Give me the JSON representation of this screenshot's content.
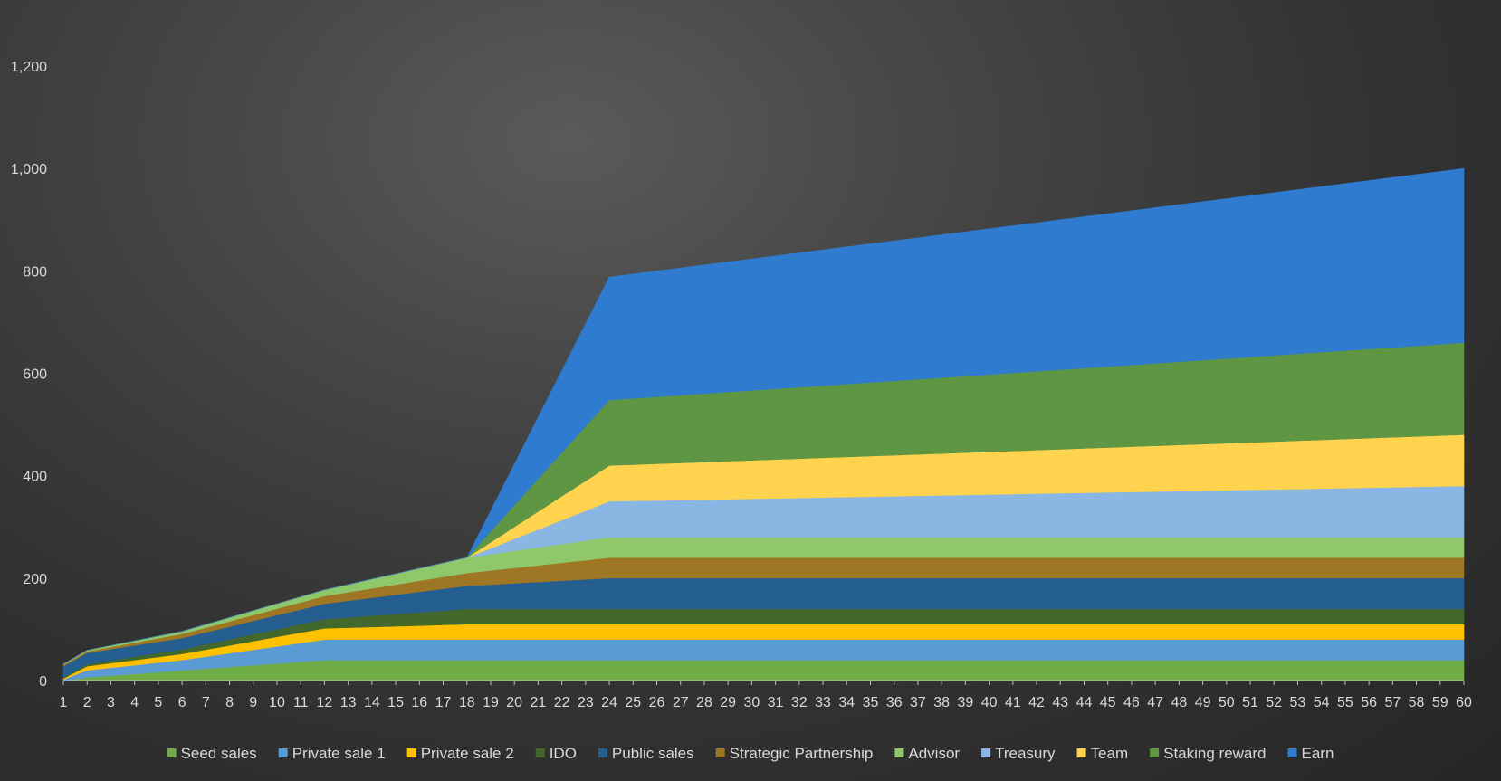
{
  "chart_data": {
    "type": "area",
    "stacked": true,
    "title": "",
    "xlabel": "",
    "ylabel": "",
    "x": [
      1,
      2,
      3,
      4,
      5,
      6,
      7,
      8,
      9,
      10,
      11,
      12,
      13,
      14,
      15,
      16,
      17,
      18,
      19,
      20,
      21,
      22,
      23,
      24,
      25,
      26,
      27,
      28,
      29,
      30,
      31,
      32,
      33,
      34,
      35,
      36,
      37,
      38,
      39,
      40,
      41,
      42,
      43,
      44,
      45,
      46,
      47,
      48,
      49,
      50,
      51,
      52,
      53,
      54,
      55,
      56,
      57,
      58,
      59,
      60
    ],
    "ylim": [
      0,
      1200
    ],
    "yticks": [
      0,
      200,
      400,
      600,
      800,
      1000,
      1200
    ],
    "ytick_labels": [
      "0",
      "200",
      "400",
      "600",
      "800",
      "1,000",
      "1,200"
    ],
    "legend_position": "bottom",
    "grid": false,
    "series": [
      {
        "name": "Seed sales",
        "color": "#70ad47",
        "anchors": [
          [
            1,
            0
          ],
          [
            2,
            6
          ],
          [
            6,
            20
          ],
          [
            12,
            40
          ],
          [
            60,
            40
          ]
        ]
      },
      {
        "name": "Private sale 1",
        "color": "#5b9bd5",
        "anchors": [
          [
            1,
            2
          ],
          [
            2,
            14
          ],
          [
            6,
            20
          ],
          [
            12,
            40
          ],
          [
            60,
            40
          ]
        ]
      },
      {
        "name": "Private sale 2",
        "color": "#ffc000",
        "anchors": [
          [
            1,
            2
          ],
          [
            2,
            8
          ],
          [
            6,
            12
          ],
          [
            12,
            22
          ],
          [
            18,
            30
          ],
          [
            60,
            30
          ]
        ]
      },
      {
        "name": "IDO",
        "color": "#43682b",
        "anchors": [
          [
            1,
            2
          ],
          [
            2,
            4
          ],
          [
            6,
            9
          ],
          [
            12,
            18
          ],
          [
            18,
            30
          ],
          [
            60,
            30
          ]
        ]
      },
      {
        "name": "Public sales",
        "color": "#255e91",
        "anchors": [
          [
            1,
            22
          ],
          [
            2,
            22
          ],
          [
            6,
            22
          ],
          [
            12,
            30
          ],
          [
            18,
            45
          ],
          [
            24,
            60
          ],
          [
            60,
            60
          ]
        ]
      },
      {
        "name": "Strategic Partnership",
        "color": "#9e7624",
        "anchors": [
          [
            1,
            3
          ],
          [
            2,
            3
          ],
          [
            6,
            8
          ],
          [
            12,
            15
          ],
          [
            18,
            25
          ],
          [
            24,
            40
          ],
          [
            60,
            40
          ]
        ]
      },
      {
        "name": "Advisor",
        "color": "#8fc86a",
        "anchors": [
          [
            1,
            1
          ],
          [
            2,
            2
          ],
          [
            6,
            5
          ],
          [
            12,
            12
          ],
          [
            18,
            30
          ],
          [
            24,
            40
          ],
          [
            60,
            40
          ]
        ]
      },
      {
        "name": "Treasury",
        "color": "#8ab6e3",
        "anchors": [
          [
            1,
            0
          ],
          [
            18,
            0
          ],
          [
            24,
            70
          ],
          [
            60,
            100
          ]
        ]
      },
      {
        "name": "Team",
        "color": "#ffd34d",
        "anchors": [
          [
            1,
            0
          ],
          [
            18,
            0
          ],
          [
            24,
            70
          ],
          [
            60,
            100
          ]
        ]
      },
      {
        "name": "Staking reward",
        "color": "#5f9643",
        "anchors": [
          [
            1,
            0
          ],
          [
            18,
            0
          ],
          [
            24,
            128
          ],
          [
            60,
            180
          ]
        ]
      },
      {
        "name": "Earn",
        "color": "#2e7bcf",
        "anchors": [
          [
            1,
            0
          ],
          [
            18,
            0
          ],
          [
            24,
            240
          ],
          [
            60,
            340
          ]
        ]
      }
    ]
  }
}
